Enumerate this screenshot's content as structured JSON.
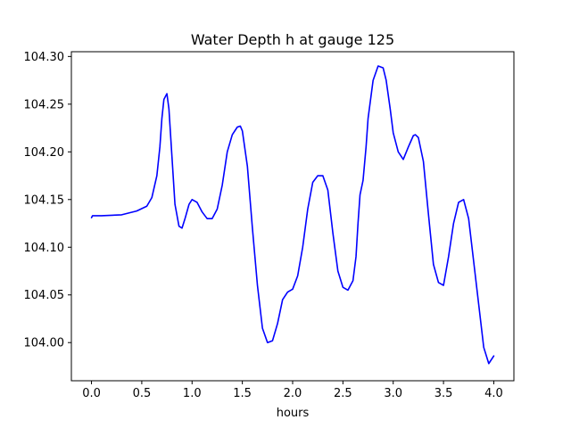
{
  "chart_data": {
    "type": "line",
    "title": "Water Depth h at gauge 125",
    "xlabel": "hours",
    "ylabel": "",
    "xlim": [
      -0.2,
      4.2
    ],
    "ylim": [
      103.96,
      104.305
    ],
    "xticks": [
      0.0,
      0.5,
      1.0,
      1.5,
      2.0,
      2.5,
      3.0,
      3.5,
      4.0
    ],
    "xtick_labels": [
      "0.0",
      "0.5",
      "1.0",
      "1.5",
      "2.0",
      "2.5",
      "3.0",
      "3.5",
      "4.0"
    ],
    "yticks": [
      104.0,
      104.05,
      104.1,
      104.15,
      104.2,
      104.25,
      104.3
    ],
    "ytick_labels": [
      "104.00",
      "104.05",
      "104.10",
      "104.15",
      "104.20",
      "104.25",
      "104.30"
    ],
    "grid": false,
    "series": [
      {
        "color": "#0000ff",
        "x": [
          0.0,
          0.01,
          0.1,
          0.3,
          0.45,
          0.55,
          0.6,
          0.65,
          0.68,
          0.7,
          0.72,
          0.75,
          0.77,
          0.8,
          0.83,
          0.87,
          0.9,
          0.93,
          0.97,
          1.0,
          1.05,
          1.1,
          1.15,
          1.2,
          1.25,
          1.3,
          1.35,
          1.4,
          1.45,
          1.48,
          1.5,
          1.55,
          1.6,
          1.65,
          1.7,
          1.75,
          1.8,
          1.85,
          1.9,
          1.95,
          2.0,
          2.05,
          2.1,
          2.15,
          2.2,
          2.25,
          2.3,
          2.35,
          2.4,
          2.45,
          2.5,
          2.55,
          2.6,
          2.63,
          2.65,
          2.67,
          2.7,
          2.73,
          2.75,
          2.8,
          2.85,
          2.9,
          2.93,
          2.97,
          3.0,
          3.05,
          3.1,
          3.15,
          3.2,
          3.22,
          3.25,
          3.3,
          3.35,
          3.4,
          3.45,
          3.5,
          3.55,
          3.6,
          3.65,
          3.7,
          3.75,
          3.8,
          3.85,
          3.9,
          3.95,
          4.0
        ],
        "y": [
          104.131,
          104.133,
          104.133,
          104.134,
          104.138,
          104.143,
          104.152,
          104.175,
          104.205,
          104.235,
          104.255,
          104.261,
          104.245,
          104.195,
          104.145,
          104.122,
          104.12,
          104.13,
          104.145,
          104.15,
          104.147,
          104.137,
          104.13,
          104.13,
          104.14,
          104.165,
          104.2,
          104.218,
          104.226,
          104.227,
          104.222,
          104.185,
          104.12,
          104.06,
          104.015,
          104.0,
          104.002,
          104.02,
          104.045,
          104.053,
          104.056,
          104.07,
          104.1,
          104.14,
          104.168,
          104.175,
          104.175,
          104.16,
          104.115,
          104.075,
          104.058,
          104.055,
          104.065,
          104.09,
          104.125,
          104.155,
          104.17,
          104.205,
          104.235,
          104.275,
          104.29,
          104.288,
          104.275,
          104.245,
          104.22,
          104.2,
          104.192,
          104.205,
          104.217,
          104.218,
          104.215,
          104.19,
          104.135,
          104.082,
          104.063,
          104.06,
          104.09,
          104.125,
          104.147,
          104.15,
          104.13,
          104.085,
          104.04,
          103.995,
          103.978,
          103.986
        ]
      }
    ]
  }
}
